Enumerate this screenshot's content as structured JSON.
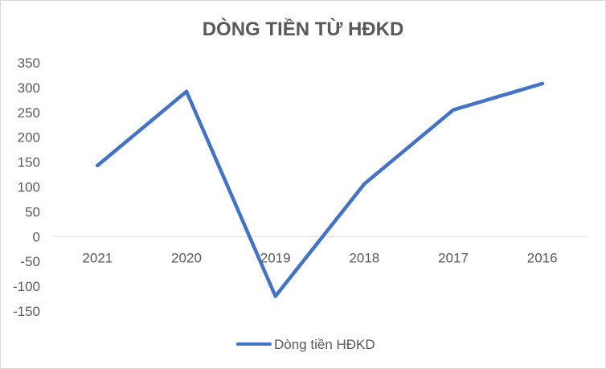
{
  "chart_data": {
    "type": "line",
    "title": "DÒNG TIỀN TỪ HĐKD",
    "xlabel": "",
    "ylabel": "",
    "categories": [
      "2021",
      "2020",
      "2019",
      "2018",
      "2017",
      "2016"
    ],
    "series": [
      {
        "name": "Dòng tiền HĐKD",
        "values": [
          143,
          292,
          -120,
          106,
          255,
          308
        ],
        "color": "#4472c4"
      }
    ],
    "ylim": [
      -150,
      350
    ],
    "yticks": [
      "350",
      "300",
      "250",
      "200",
      "150",
      "100",
      "50",
      "0",
      "-50",
      "-100",
      "-150"
    ],
    "grid": false,
    "legend_position": "bottom"
  }
}
